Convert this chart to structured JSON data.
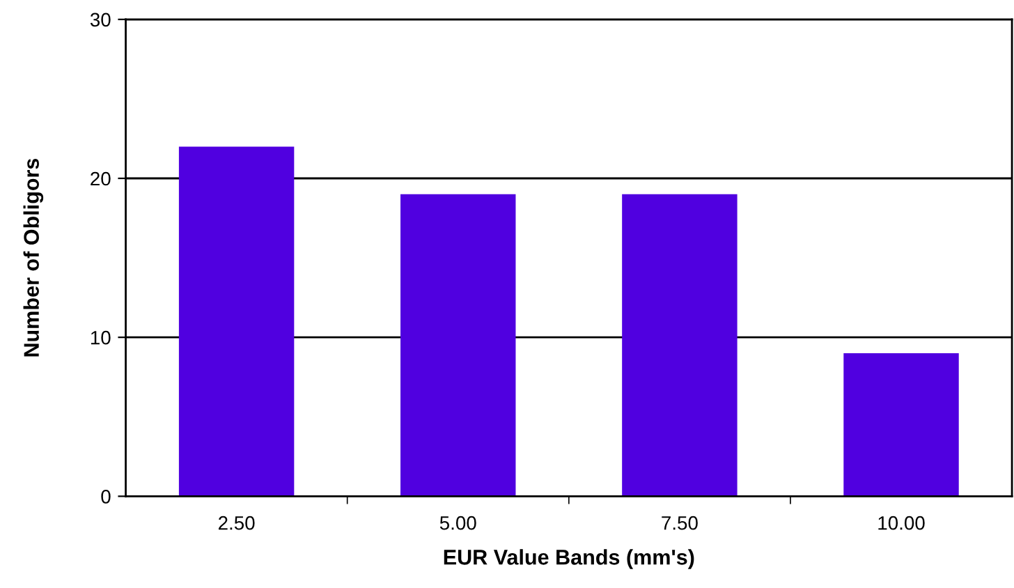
{
  "chart_data": {
    "type": "bar",
    "xlabel": "EUR Value Bands (mm's)",
    "ylabel": "Number of Obligors",
    "categories": [
      "2.50",
      "5.00",
      "7.50",
      "10.00"
    ],
    "values": [
      22,
      19,
      19,
      9
    ],
    "color": "#5000e0",
    "ylim": [
      0,
      30
    ],
    "yticks": [
      0,
      10,
      20,
      30
    ],
    "grid": "y"
  }
}
